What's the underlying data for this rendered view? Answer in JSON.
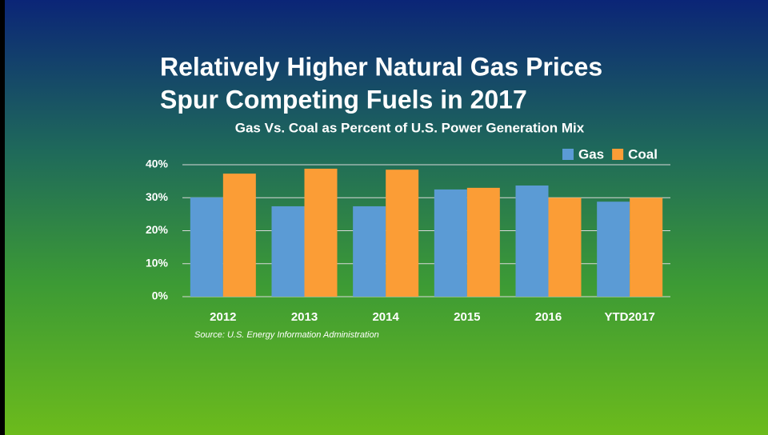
{
  "slide_title": [
    "Relatively Higher Natural Gas Prices",
    "Spur Competing Fuels in 2017"
  ],
  "chart_data": {
    "type": "bar",
    "title": "Gas Vs. Coal as Percent of U.S. Power Generation Mix",
    "categories": [
      "2012",
      "2013",
      "2014",
      "2015",
      "2016",
      "YTD2017"
    ],
    "series": [
      {
        "name": "Gas",
        "color": "#5b9bd5",
        "values": [
          30.1,
          27.4,
          27.4,
          32.5,
          33.7,
          28.8
        ]
      },
      {
        "name": "Coal",
        "color": "#fb9d36",
        "values": [
          37.3,
          38.8,
          38.5,
          33.0,
          30.0,
          30.0
        ]
      }
    ],
    "ylim": [
      0,
      40
    ],
    "yticks": [
      {
        "value": 0,
        "label": "0%"
      },
      {
        "value": 10,
        "label": "10%"
      },
      {
        "value": 20,
        "label": "20%"
      },
      {
        "value": 30,
        "label": "30%"
      },
      {
        "value": 40,
        "label": "40%"
      }
    ],
    "grid": true,
    "legend": "top-right",
    "source": "Source: U.S. Energy Information Administration"
  }
}
